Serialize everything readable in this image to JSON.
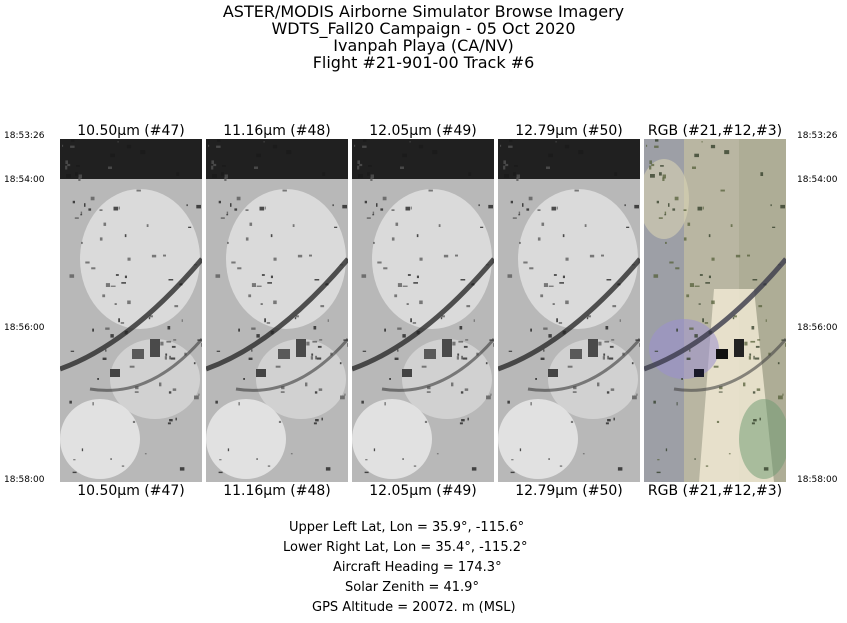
{
  "header": {
    "lines": [
      "ASTER/MODIS Airborne Simulator Browse Imagery",
      "WDTS_Fall20 Campaign - 05 Oct 2020",
      "Ivanpah Playa (CA/NV)",
      "Flight #21-901-00 Track #6"
    ]
  },
  "times": [
    "18:53:26",
    "18:54:00",
    "18:56:00",
    "18:58:00"
  ],
  "panels": [
    {
      "label": "10.50μm (#47)",
      "mode": "gray"
    },
    {
      "label": "11.16μm (#48)",
      "mode": "gray"
    },
    {
      "label": "12.05μm (#49)",
      "mode": "gray"
    },
    {
      "label": "12.79μm (#50)",
      "mode": "gray"
    },
    {
      "label": "RGB (#21,#12,#3)",
      "mode": "rgb"
    }
  ],
  "info": [
    "Upper Left Lat, Lon =    35.9°, -115.6°",
    "Lower Right Lat, Lon =    35.4°, -115.2°",
    "Aircraft Heading =  174.3°",
    "Solar Zenith =   41.9°",
    "GPS Altitude =  20072. m (MSL)"
  ]
}
